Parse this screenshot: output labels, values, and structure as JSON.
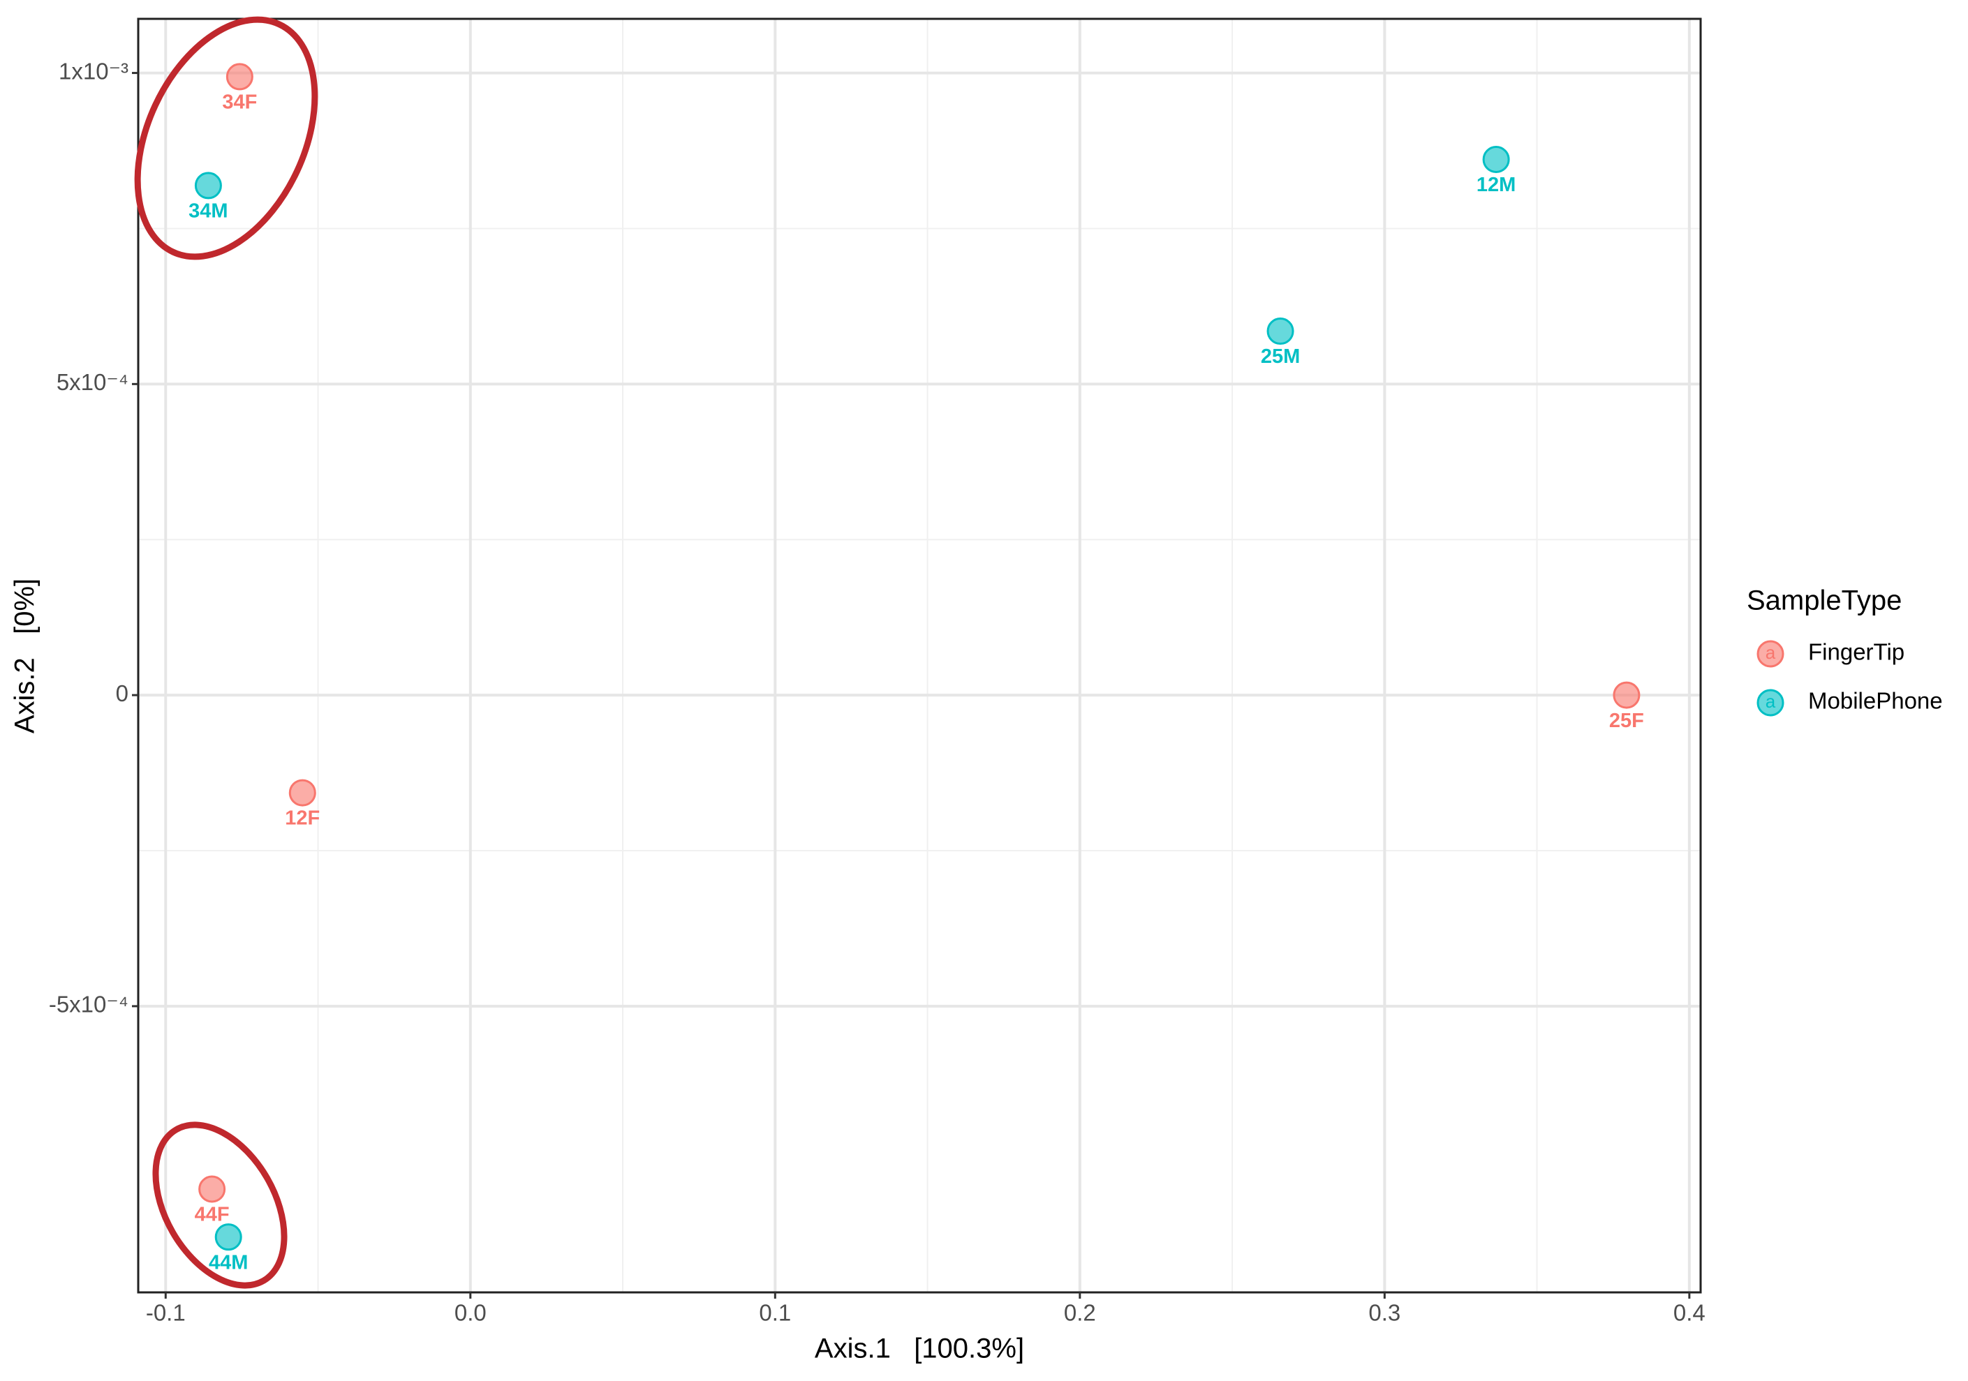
{
  "chart_data": {
    "type": "scatter",
    "x_label": "Axis.1   [100.3%]",
    "y_label": "Axis.2   [0%]",
    "legend_title": "SampleType",
    "legend_key_label": "a",
    "legend_position": "right",
    "grid": true,
    "xlim": [
      -0.109,
      0.4037
    ],
    "ylim": [
      -0.00096,
      0.001087
    ],
    "xticks": [
      -0.1,
      {
        "value": 0,
        "label": "0.0"
      },
      0.1,
      0.2,
      0.3,
      0.4
    ],
    "yticks": [
      {
        "value": -0.0005,
        "label": "-5x10⁻⁴"
      },
      0,
      {
        "value": 0.0005,
        "label": "5x10⁻⁴"
      },
      {
        "value": 0.001,
        "label": "1x10⁻³"
      }
    ],
    "series": [
      {
        "name": "FingerTip",
        "color": "#F8766D",
        "x": [
          -0.0757,
          -0.0551,
          -0.0848,
          0.3794
        ],
        "values": [
          0.000994,
          -0.000157,
          -0.000794,
          0
        ],
        "labels": [
          "34F",
          "12F",
          "44F",
          "25F"
        ]
      },
      {
        "name": "MobilePhone",
        "color": "#00BFC4",
        "x": [
          -0.086,
          0.3366,
          0.2658,
          -0.0794
        ],
        "values": [
          0.000819,
          0.000861,
          0.000585,
          -0.000871
        ],
        "labels": [
          "34M",
          "12M",
          "25M",
          "44M"
        ]
      }
    ]
  }
}
